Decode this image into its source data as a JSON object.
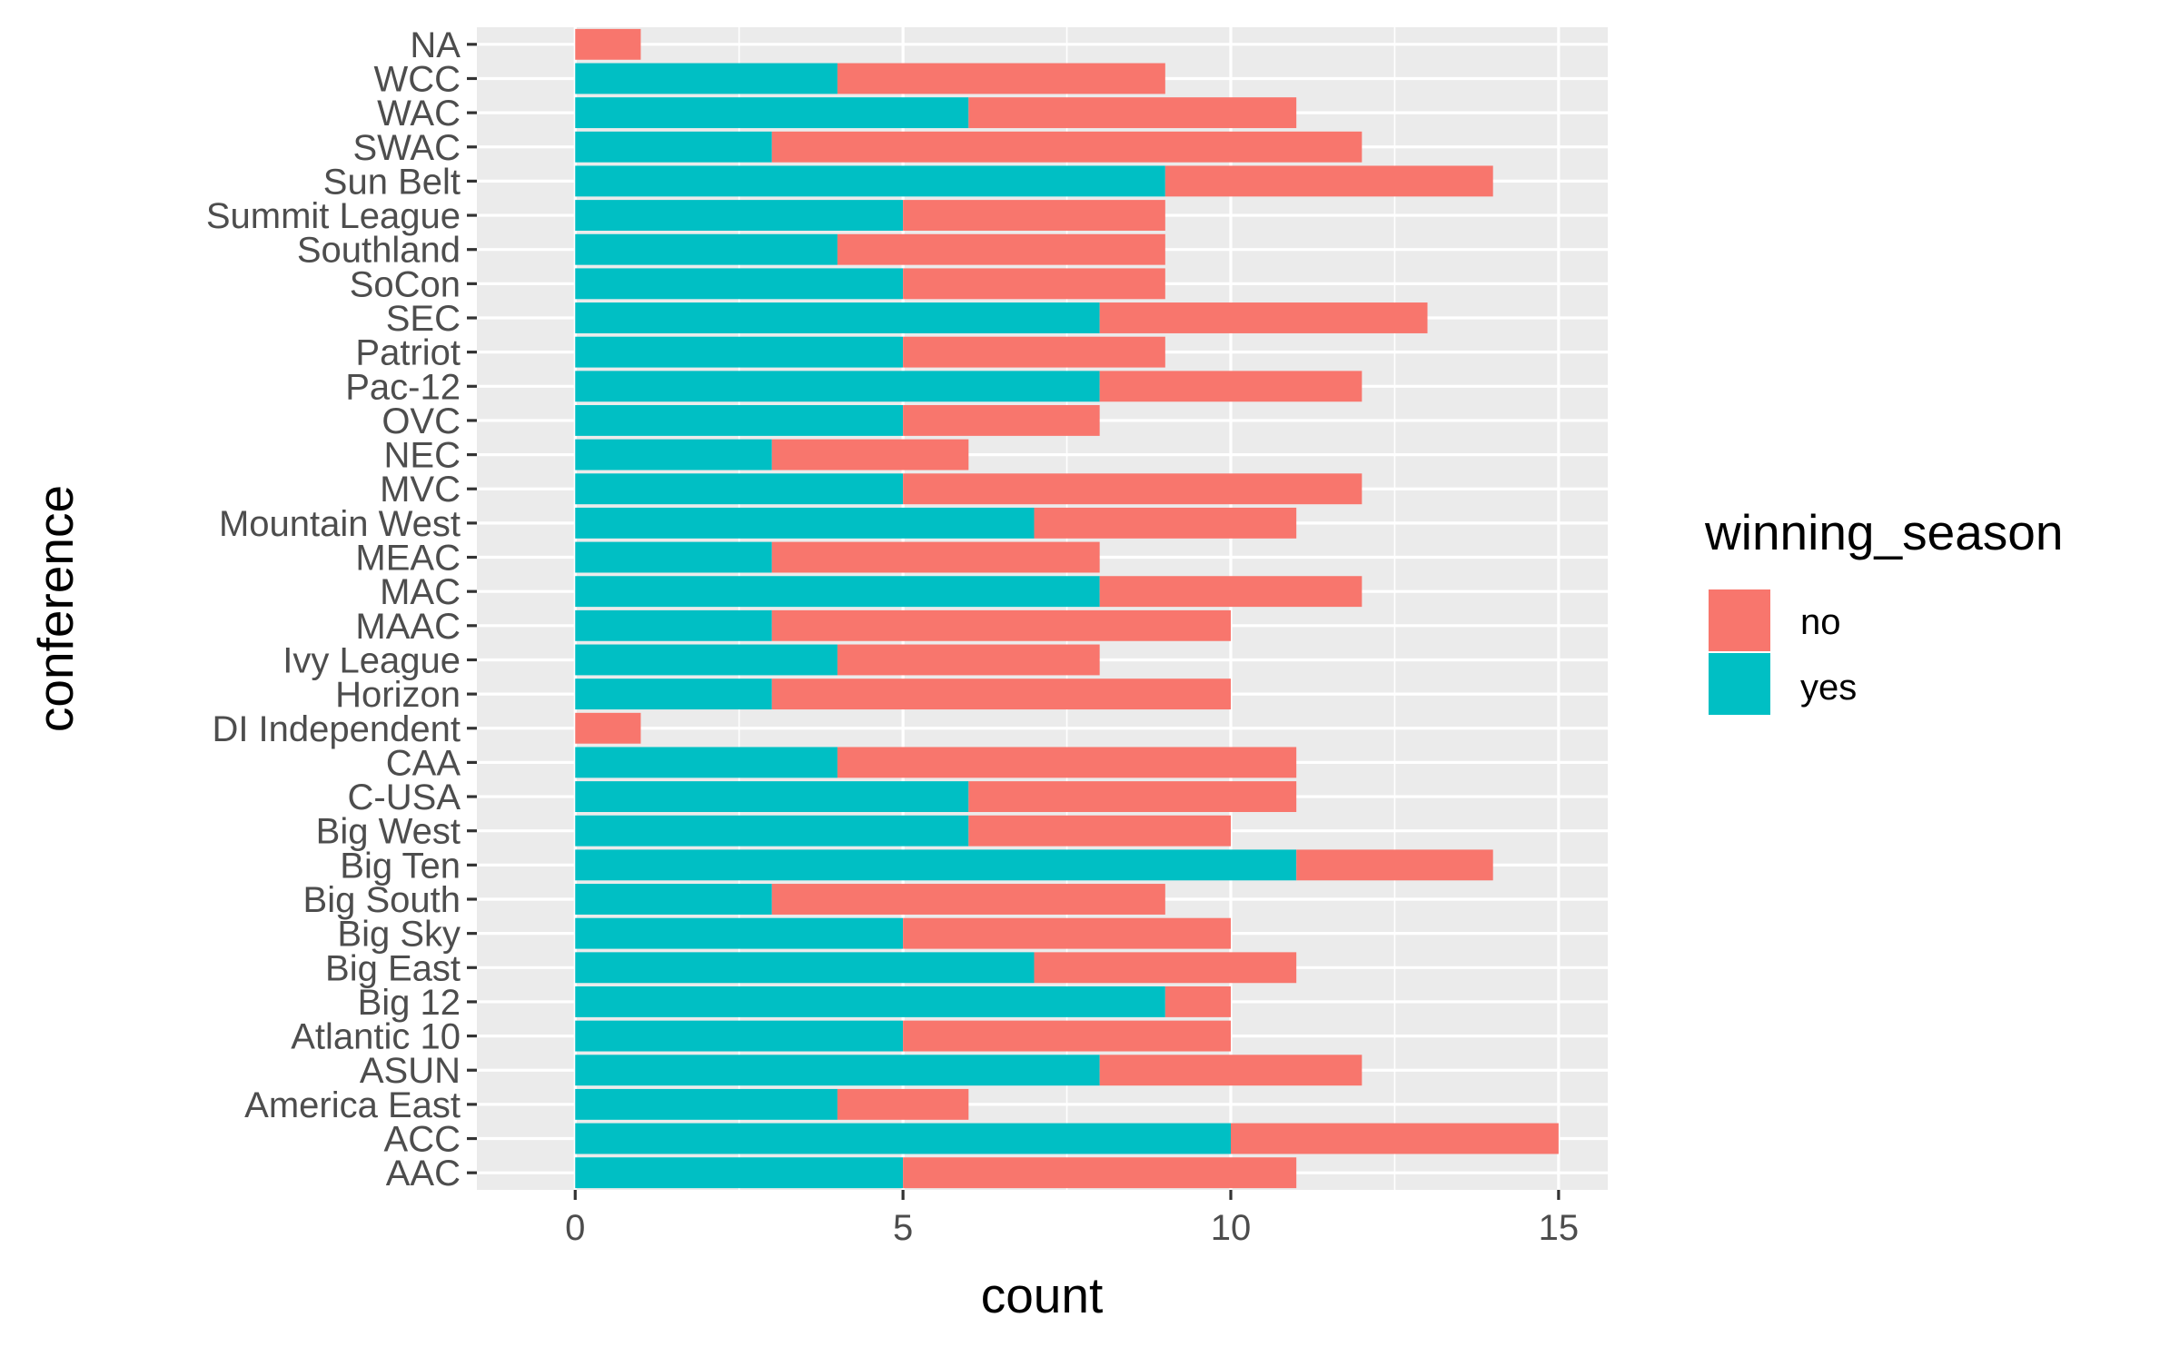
{
  "chart_data": {
    "type": "bar",
    "orientation": "horizontal",
    "stacked": true,
    "xlabel": "count",
    "ylabel": "conference",
    "xlim": [
      -1.5,
      15.75
    ],
    "xticks": [
      0,
      5,
      10,
      15
    ],
    "grid": true,
    "legend": {
      "title": "winning_season",
      "position": "right"
    },
    "categories": [
      "AAC",
      "ACC",
      "America East",
      "ASUN",
      "Atlantic 10",
      "Big 12",
      "Big East",
      "Big Sky",
      "Big South",
      "Big Ten",
      "Big West",
      "C-USA",
      "CAA",
      "DI Independent",
      "Horizon",
      "Ivy League",
      "MAAC",
      "MAC",
      "MEAC",
      "Mountain West",
      "MVC",
      "NEC",
      "OVC",
      "Pac-12",
      "Patriot",
      "SEC",
      "SoCon",
      "Southland",
      "Summit League",
      "Sun Belt",
      "SWAC",
      "WAC",
      "WCC",
      "NA"
    ],
    "series": [
      {
        "name": "no",
        "color": "#F8766D",
        "values": [
          6,
          5,
          2,
          4,
          5,
          1,
          4,
          5,
          6,
          3,
          4,
          5,
          7,
          1,
          7,
          4,
          7,
          4,
          5,
          4,
          7,
          3,
          3,
          4,
          4,
          5,
          4,
          5,
          4,
          5,
          9,
          5,
          5,
          1
        ]
      },
      {
        "name": "yes",
        "color": "#00BFC4",
        "values": [
          5,
          10,
          4,
          8,
          5,
          9,
          7,
          5,
          3,
          11,
          6,
          6,
          4,
          0,
          3,
          4,
          3,
          8,
          3,
          7,
          5,
          3,
          5,
          8,
          5,
          8,
          5,
          4,
          5,
          9,
          3,
          6,
          4,
          0
        ]
      }
    ]
  }
}
